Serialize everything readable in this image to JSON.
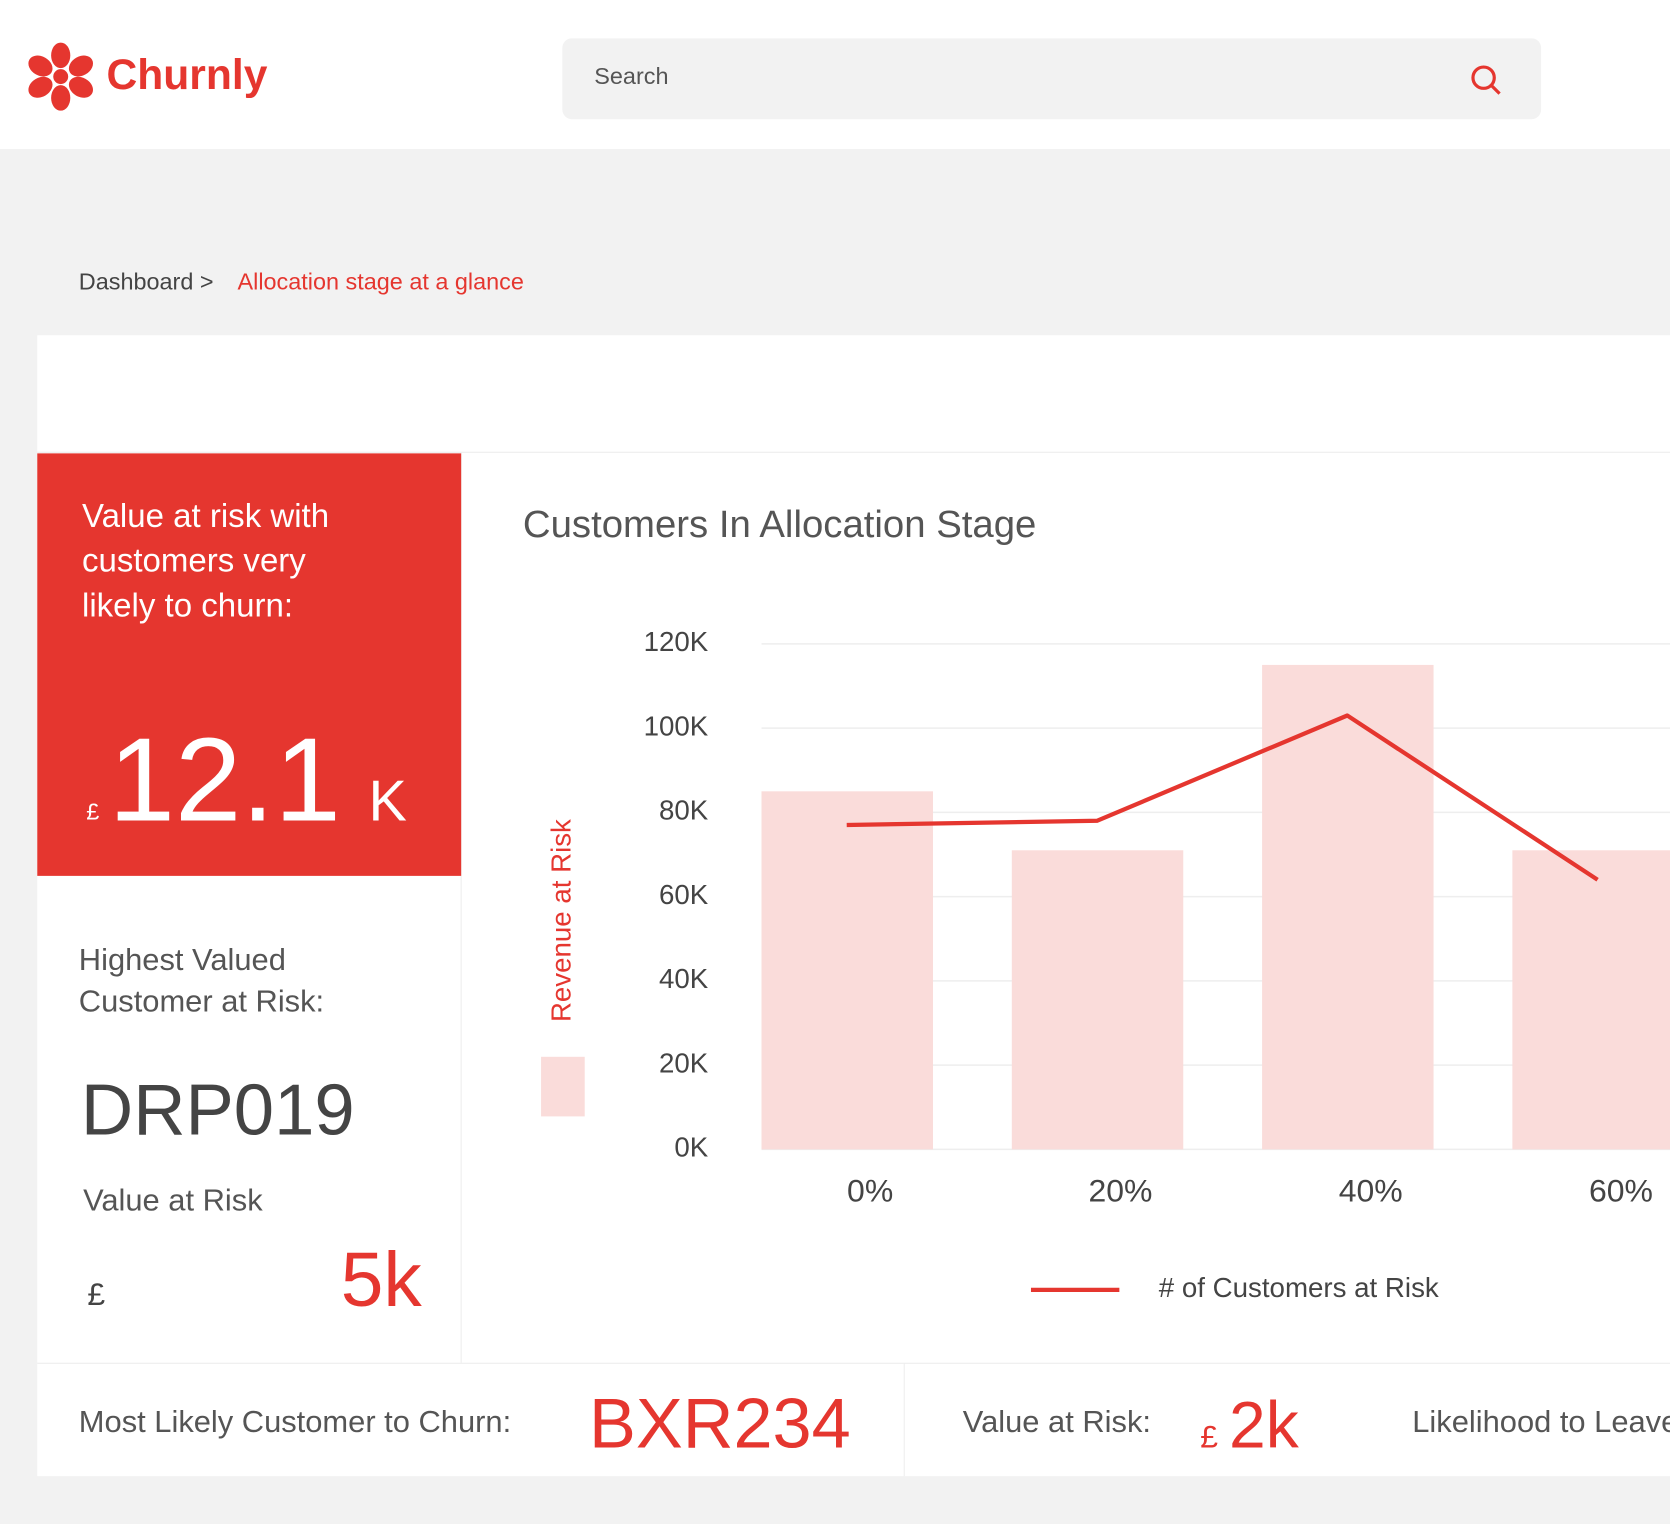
{
  "header": {
    "logo": "Churnly",
    "search_placeholder": "Search"
  },
  "breadcrumb": {
    "root": "Dashboard >",
    "current": "Allocation stage at a glance"
  },
  "highlight_card": {
    "lines": [
      "Value at risk with",
      "customers very",
      "likely to churn:"
    ],
    "currency": "£",
    "value": "12.1",
    "unit": "K"
  },
  "top_customer": {
    "label_lines": [
      "Highest Valued",
      "Customer at Risk:"
    ],
    "id": "DRP019",
    "value_label": "Value at Risk",
    "currency": "£",
    "value": "5k"
  },
  "bottom_bar": {
    "most_likely_label": "Most Likely Customer to Churn:",
    "most_likely_id": "BXR234",
    "value_label": "Value at Risk:",
    "currency": "£",
    "value": "2k",
    "likelihood_label": "Likelihood to Leave"
  },
  "chart": {
    "type": "bar",
    "title": "Customers In Allocation Stage",
    "categories": [
      "0%",
      "20%",
      "40%",
      "60%"
    ],
    "ylim": [
      0,
      120000
    ],
    "yticks": [
      {
        "value": 0,
        "label": "0K"
      },
      {
        "value": 20000,
        "label": "20K"
      },
      {
        "value": 40000,
        "label": "40K"
      },
      {
        "value": 60000,
        "label": "60K"
      },
      {
        "value": 80000,
        "label": "80K"
      },
      {
        "value": 100000,
        "label": "100K"
      },
      {
        "value": 120000,
        "label": "120K"
      }
    ],
    "grid": true,
    "series": [
      {
        "name": "Revenue at Risk",
        "type": "bar",
        "color": "#fadcda",
        "values": [
          85000,
          71000,
          115000,
          71000
        ]
      },
      {
        "name": "# of Customers at Risk",
        "type": "line",
        "color": "#e5362f",
        "values": [
          77000,
          78000,
          103000,
          64000
        ]
      }
    ]
  }
}
